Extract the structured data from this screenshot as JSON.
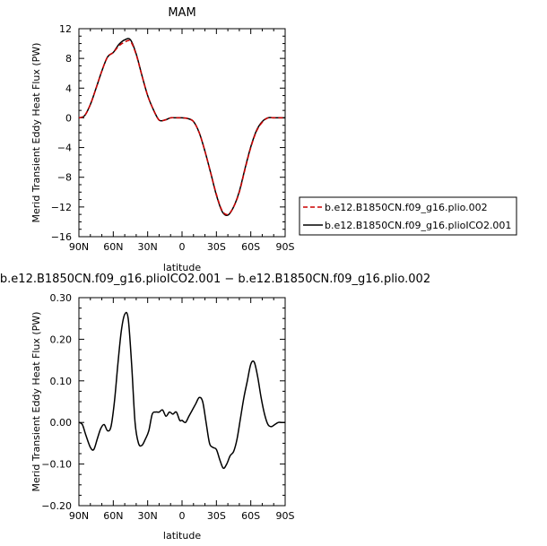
{
  "chart_data": [
    {
      "type": "line",
      "title": "MAM",
      "xlabel": "latitude",
      "ylabel": "Merid Transient Eddy Heat Flux (PW)",
      "x": [
        90,
        85,
        80,
        75,
        70,
        65,
        60,
        55,
        50,
        45,
        40,
        35,
        30,
        25,
        20,
        15,
        10,
        5,
        0,
        -5,
        -10,
        -15,
        -20,
        -25,
        -30,
        -35,
        -40,
        -45,
        -50,
        -55,
        -60,
        -65,
        -70,
        -75,
        -80,
        -85,
        -90
      ],
      "xlim": [
        90,
        -90
      ],
      "xticks": [
        90,
        60,
        30,
        0,
        -30,
        -60,
        -90
      ],
      "xtick_labels": [
        "90N",
        "60N",
        "30N",
        "0",
        "30S",
        "60S",
        "90S"
      ],
      "ylim": [
        -16,
        12
      ],
      "yticks": [
        -16,
        -12,
        -8,
        -4,
        0,
        4,
        8,
        12
      ],
      "ytick_labels": [
        "−16",
        "−12",
        "−8",
        "−4",
        "0",
        "4",
        "8",
        "12"
      ],
      "series": [
        {
          "name": "b.e12.B1850CN.f09_g16.plio.002",
          "color": "#cc0000",
          "dash": "dashed",
          "values": [
            0,
            0.3,
            1.8,
            4.0,
            6.3,
            8.2,
            8.8,
            9.7,
            10.2,
            10.3,
            8.5,
            5.7,
            3.0,
            1.1,
            -0.3,
            -0.3,
            0,
            0,
            0,
            -0.1,
            -0.5,
            -2.0,
            -4.5,
            -7.4,
            -10.3,
            -12.5,
            -13.0,
            -12.0,
            -10.0,
            -6.9,
            -4.0,
            -1.8,
            -0.6,
            0,
            0,
            0,
            0
          ]
        },
        {
          "name": "b.e12.B1850CN.f09_g16.plioICO2.001",
          "color": "#000000",
          "dash": "solid",
          "values": [
            0,
            0.3,
            1.8,
            4.0,
            6.3,
            8.2,
            8.8,
            9.9,
            10.5,
            10.5,
            8.6,
            5.7,
            3.0,
            1.1,
            -0.3,
            -0.3,
            0,
            0,
            0,
            -0.1,
            -0.5,
            -2.0,
            -4.5,
            -7.4,
            -10.4,
            -12.6,
            -13.1,
            -12.0,
            -9.9,
            -6.8,
            -3.9,
            -1.7,
            -0.5,
            0,
            0,
            0,
            0
          ]
        }
      ],
      "legend": "right"
    },
    {
      "type": "line",
      "title": "b.e12.B1850CN.f09_g16.plioICO2.001 − b.e12.B1850CN.f09_g16.plio.002",
      "xlabel": "latitude",
      "ylabel": "Merid Transient Eddy Heat Flux (PW)",
      "x": [
        90,
        87,
        84,
        80,
        77,
        74,
        71,
        68,
        65,
        62,
        59,
        56,
        53,
        50,
        47,
        44,
        41,
        38,
        35,
        32,
        29,
        26,
        23,
        20,
        17,
        14,
        11,
        8,
        5,
        2,
        0,
        -3,
        -6,
        -9,
        -12,
        -15,
        -18,
        -21,
        -24,
        -27,
        -30,
        -33,
        -36,
        -39,
        -42,
        -45,
        -48,
        -51,
        -54,
        -57,
        -60,
        -63,
        -66,
        -69,
        -72,
        -75,
        -78,
        -81,
        -84,
        -87,
        -90
      ],
      "xlim": [
        90,
        -90
      ],
      "xticks": [
        90,
        60,
        30,
        0,
        -30,
        -60,
        -90
      ],
      "xtick_labels": [
        "90N",
        "60N",
        "30N",
        "0",
        "30S",
        "60S",
        "90S"
      ],
      "ylim": [
        -0.2,
        0.3
      ],
      "yticks": [
        -0.2,
        -0.1,
        0,
        0.1,
        0.2,
        0.3
      ],
      "ytick_labels": [
        "−0.20",
        "−0.10",
        "0.00",
        "0.10",
        "0.20",
        "0.30"
      ],
      "series": [
        {
          "name": "",
          "color": "#000000",
          "dash": "solid",
          "values": [
            0,
            -0.005,
            -0.03,
            -0.06,
            -0.065,
            -0.04,
            -0.015,
            -0.005,
            -0.02,
            -0.01,
            0.05,
            0.14,
            0.22,
            0.26,
            0.25,
            0.14,
            0.0,
            -0.05,
            -0.055,
            -0.04,
            -0.02,
            0.02,
            0.025,
            0.025,
            0.03,
            0.015,
            0.025,
            0.02,
            0.025,
            0.005,
            0.005,
            0.0,
            0.015,
            0.03,
            0.045,
            0.06,
            0.05,
            0.0,
            -0.05,
            -0.06,
            -0.065,
            -0.09,
            -0.11,
            -0.1,
            -0.08,
            -0.07,
            -0.04,
            0.01,
            0.06,
            0.1,
            0.14,
            0.145,
            0.11,
            0.06,
            0.02,
            -0.005,
            -0.01,
            -0.005,
            0,
            0,
            0
          ]
        }
      ]
    }
  ]
}
